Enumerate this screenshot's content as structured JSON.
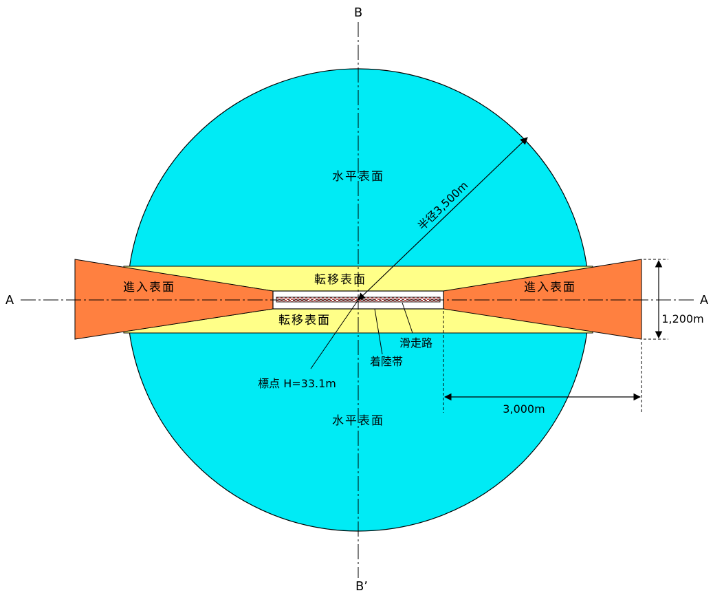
{
  "colors": {
    "horizontal_surface": "#00ebf5",
    "approach_surface": "#ff8040",
    "transitional_surface": "#ffff88",
    "runway_fill": "#ffffff",
    "touchdown_zone": "#c0504d",
    "line": "#000000"
  },
  "labels": {
    "axis_b_top": "B",
    "axis_b_bottom": "B’",
    "axis_a_left": "A",
    "axis_a_right": "A",
    "horizontal_surface_top": "水平表面",
    "horizontal_surface_bottom": "水平表面",
    "approach_surface_left": "進入表面",
    "approach_surface_right": "進入表面",
    "transitional_surface_top": "転移表面",
    "transitional_surface_bottom": "転移表面",
    "runway": "滑走路",
    "touchdown_zone": "着陸帯",
    "reference_point": "標点 H=33.1m",
    "radius": "半径3,500m",
    "approach_width": "1,200m",
    "approach_length": "3,000m"
  }
}
